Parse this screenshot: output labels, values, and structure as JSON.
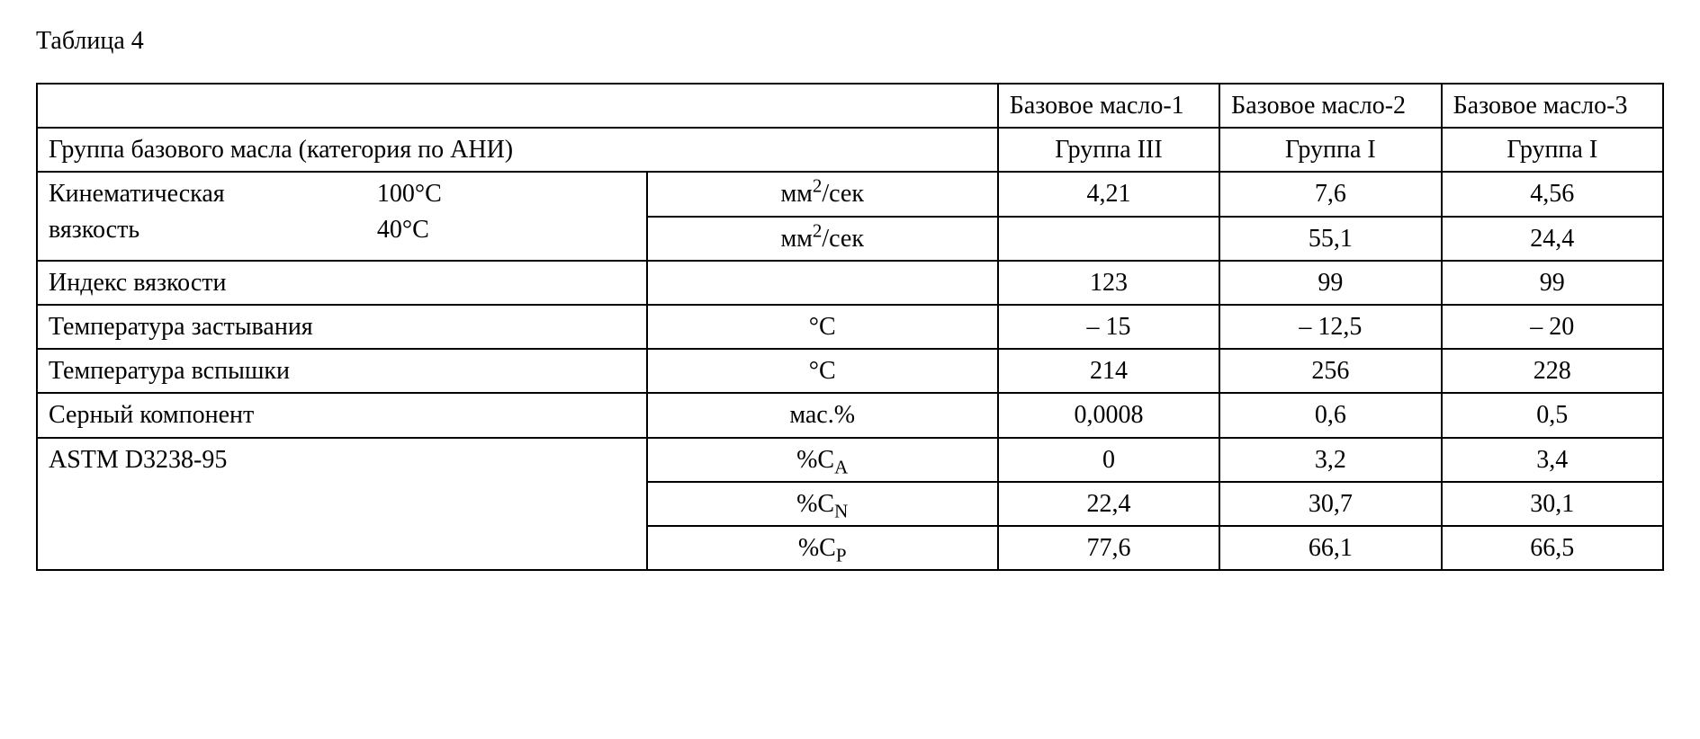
{
  "title": "Таблица 4",
  "headers": {
    "blank": "",
    "oil1": "Базовое масло-1",
    "oil2": "Базовое масло-2",
    "oil3": "Базовое масло-3"
  },
  "rows": {
    "group": {
      "label": "Группа базового масла (категория по АНИ)",
      "v1": "Группа III",
      "v2": "Группа I",
      "v3": "Группа I"
    },
    "kv_row1": {
      "label": "Кинематическая",
      "temp": "100°C",
      "unit_prefix": "мм",
      "unit_sup": "2",
      "unit_suffix": "/сек",
      "v1": "4,21",
      "v2": "7,6",
      "v3": "4,56"
    },
    "kv_row2": {
      "label": "вязкость",
      "temp": "40°C",
      "unit_prefix": "мм",
      "unit_sup": "2",
      "unit_suffix": "/сек",
      "v1": "",
      "v2": "55,1",
      "v3": "24,4"
    },
    "vi": {
      "label": "Индекс вязкости",
      "unit": "",
      "v1": "123",
      "v2": "99",
      "v3": "99"
    },
    "pour": {
      "label": "Температура застывания",
      "unit": "°C",
      "v1": "– 15",
      "v2": "– 12,5",
      "v3": "– 20"
    },
    "flash": {
      "label": "Температура вспышки",
      "unit": "°C",
      "v1": "214",
      "v2": "256",
      "v3": "228"
    },
    "sulfur": {
      "label": "Серный компонент",
      "unit": "мас.%",
      "v1": "0,0008",
      "v2": "0,6",
      "v3": "0,5"
    },
    "astm_label": "ASTM D3238-95",
    "ca": {
      "unit_prefix": "%C",
      "unit_sub": "A",
      "v1": "0",
      "v2": "3,2",
      "v3": "3,4"
    },
    "cn": {
      "unit_prefix": "%C",
      "unit_sub": "N",
      "v1": "22,4",
      "v2": "30,7",
      "v3": "30,1"
    },
    "cp": {
      "unit_prefix": "%C",
      "unit_sub": "P",
      "v1": "77,6",
      "v2": "66,1",
      "v3": "66,5"
    }
  }
}
